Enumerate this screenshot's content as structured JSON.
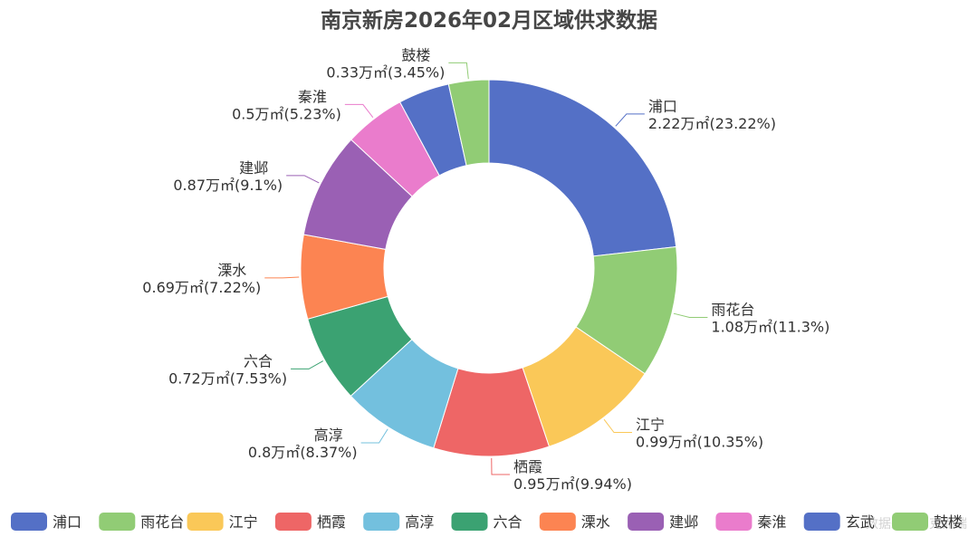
{
  "chart_data": {
    "type": "pie",
    "donut": true,
    "title": "南京新房2026年02月区域供求数据",
    "unit": "万㎡",
    "slices": [
      {
        "name": "浦口",
        "value": 2.22,
        "value_label": "2.22万㎡",
        "percent": 23.22,
        "percent_label": "(23.22%)",
        "color": "#5470c6"
      },
      {
        "name": "雨花台",
        "value": 1.08,
        "value_label": "1.08万㎡",
        "percent": 11.3,
        "percent_label": "(11.3%)",
        "color": "#91cc75"
      },
      {
        "name": "江宁",
        "value": 0.99,
        "value_label": "0.99万㎡",
        "percent": 10.35,
        "percent_label": "(10.35%)",
        "color": "#fac858"
      },
      {
        "name": "栖霞",
        "value": 0.95,
        "value_label": "0.95万㎡",
        "percent": 9.94,
        "percent_label": "(9.94%)",
        "color": "#ee6666"
      },
      {
        "name": "高淳",
        "value": 0.8,
        "value_label": "0.8万㎡",
        "percent": 8.37,
        "percent_label": "(8.37%)",
        "color": "#73c0de"
      },
      {
        "name": "六合",
        "value": 0.72,
        "value_label": "0.72万㎡",
        "percent": 7.53,
        "percent_label": "(7.53%)",
        "color": "#3ba272"
      },
      {
        "name": "溧水",
        "value": 0.69,
        "value_label": "0.69万㎡",
        "percent": 7.22,
        "percent_label": "(7.22%)",
        "color": "#fc8452"
      },
      {
        "name": "建邺",
        "value": 0.87,
        "value_label": "0.87万㎡",
        "percent": 9.1,
        "percent_label": "(9.1%)",
        "color": "#9a60b4"
      },
      {
        "name": "秦淮",
        "value": 0.5,
        "value_label": "0.5万㎡",
        "percent": 5.23,
        "percent_label": "(5.23%)",
        "color": "#ea7ccc"
      },
      {
        "name": "玄武",
        "value": 0.42,
        "value_label": "",
        "percent": 4.39,
        "percent_label": "",
        "color": "#5470c6",
        "show_label": false
      },
      {
        "name": "鼓楼",
        "value": 0.33,
        "value_label": "0.33万㎡",
        "percent": 3.45,
        "percent_label": "(3.45%)",
        "color": "#91cc75"
      }
    ],
    "legend": {
      "position": "bottom",
      "items": [
        "浦口",
        "雨花台",
        "江宁",
        "栖霞",
        "高淳",
        "六合",
        "溧水",
        "建邺",
        "秦淮",
        "玄武",
        "鼓楼"
      ]
    },
    "watermark": "数据来源：克而瑞"
  }
}
